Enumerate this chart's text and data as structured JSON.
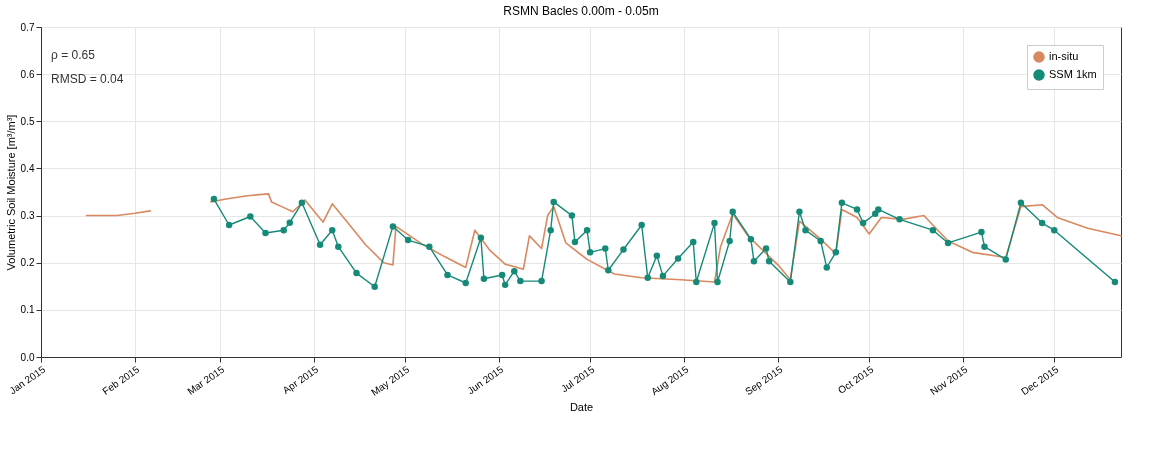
{
  "chart_data": {
    "type": "line",
    "title": "RSMN Bacles 0.00m - 0.05m",
    "xlabel": "Date",
    "ylabel": "Volumetric Soil Moisture [m³/m³]",
    "annotations": [
      "ρ = 0.65",
      "RMSD = 0.04"
    ],
    "xlim": [
      "2015-01-01",
      "2015-12-23"
    ],
    "xticks": [
      {
        "value": "2015-01-01",
        "label": "Jan 2015"
      },
      {
        "value": "2015-02-01",
        "label": "Feb 2015"
      },
      {
        "value": "2015-03-01",
        "label": "Mar 2015"
      },
      {
        "value": "2015-04-01",
        "label": "Apr 2015"
      },
      {
        "value": "2015-05-01",
        "label": "May 2015"
      },
      {
        "value": "2015-06-01",
        "label": "Jun 2015"
      },
      {
        "value": "2015-07-01",
        "label": "Jul 2015"
      },
      {
        "value": "2015-08-01",
        "label": "Aug 2015"
      },
      {
        "value": "2015-09-01",
        "label": "Sep 2015"
      },
      {
        "value": "2015-10-01",
        "label": "Oct 2015"
      },
      {
        "value": "2015-11-01",
        "label": "Nov 2015"
      },
      {
        "value": "2015-12-01",
        "label": "Dec 2015"
      }
    ],
    "ylim": [
      0,
      0.7
    ],
    "yticks": [
      {
        "value": 0,
        "label": "0.0"
      },
      {
        "value": 0.1,
        "label": "0.1"
      },
      {
        "value": 0.2,
        "label": "0.2"
      },
      {
        "value": 0.3,
        "label": "0.3"
      },
      {
        "value": 0.4,
        "label": "0.4"
      },
      {
        "value": 0.5,
        "label": "0.5"
      },
      {
        "value": 0.6,
        "label": "0.6"
      },
      {
        "value": 0.7,
        "label": "0.7"
      }
    ],
    "grid": true,
    "legend": "top right",
    "line_style": "solid",
    "series": [
      {
        "name": "in-situ",
        "color": "#d9895f",
        "marker": "none",
        "x": [
          "2015-01-16",
          "2015-01-26",
          "2015-02-01",
          "2015-02-06",
          "2015-02-16",
          "2015-02-26",
          "2015-03-03",
          "2015-03-10",
          "2015-03-17",
          "2015-03-18",
          "2015-03-21",
          "2015-03-25",
          "2015-03-29",
          "2015-04-04",
          "2015-04-07",
          "2015-04-12",
          "2015-04-18",
          "2015-04-24",
          "2015-04-27",
          "2015-04-28",
          "2015-05-07",
          "2015-05-14",
          "2015-05-21",
          "2015-05-24",
          "2015-05-29",
          "2015-06-03",
          "2015-06-09",
          "2015-06-11",
          "2015-06-15",
          "2015-06-17",
          "2015-06-19",
          "2015-06-23",
          "2015-06-30",
          "2015-07-09",
          "2015-07-18",
          "2015-07-31",
          "2015-08-11",
          "2015-08-13",
          "2015-08-17",
          "2015-08-22",
          "2015-09-01",
          "2015-09-05",
          "2015-09-08",
          "2015-09-15",
          "2015-09-20",
          "2015-09-22",
          "2015-09-27",
          "2015-10-01",
          "2015-10-05",
          "2015-10-12",
          "2015-10-19",
          "2015-10-27",
          "2015-11-04",
          "2015-11-15",
          "2015-11-20",
          "2015-11-27",
          "2015-12-02",
          "2015-12-12",
          "2015-12-23"
        ],
        "values": [
          0.3,
          0.3,
          0.305,
          0.31,
          null,
          0.329,
          0.335,
          0.342,
          0.346,
          0.329,
          0.32,
          0.308,
          0.333,
          0.286,
          0.325,
          0.286,
          0.238,
          0.2,
          0.195,
          0.277,
          0.238,
          0.213,
          0.19,
          0.269,
          0.226,
          0.197,
          0.186,
          0.257,
          0.23,
          0.3,
          0.319,
          0.242,
          0.207,
          0.176,
          0.168,
          0.164,
          0.159,
          0.234,
          0.304,
          0.257,
          0.195,
          0.164,
          0.288,
          0.25,
          0.219,
          0.313,
          0.296,
          0.261,
          0.296,
          0.292,
          0.3,
          0.246,
          0.222,
          0.211,
          0.319,
          0.323,
          0.296,
          0.273,
          0.257
        ]
      },
      {
        "name": "SSM 1km",
        "color": "#168a78",
        "marker": "circle",
        "x": [
          "2015-02-27",
          "2015-03-04",
          "2015-03-11",
          "2015-03-16",
          "2015-03-22",
          "2015-03-24",
          "2015-03-28",
          "2015-04-03",
          "2015-04-07",
          "2015-04-09",
          "2015-04-15",
          "2015-04-21",
          "2015-04-27",
          "2015-05-02",
          "2015-05-09",
          "2015-05-15",
          "2015-05-21",
          "2015-05-26",
          "2015-05-27",
          "2015-06-02",
          "2015-06-03",
          "2015-06-06",
          "2015-06-08",
          "2015-06-15",
          "2015-06-18",
          "2015-06-19",
          "2015-06-25",
          "2015-06-26",
          "2015-06-30",
          "2015-07-01",
          "2015-07-06",
          "2015-07-07",
          "2015-07-12",
          "2015-07-18",
          "2015-07-20",
          "2015-07-23",
          "2015-07-25",
          "2015-07-30",
          "2015-08-04",
          "2015-08-05",
          "2015-08-11",
          "2015-08-12",
          "2015-08-16",
          "2015-08-17",
          "2015-08-23",
          "2015-08-24",
          "2015-08-28",
          "2015-08-29",
          "2015-09-05",
          "2015-09-08",
          "2015-09-10",
          "2015-09-15",
          "2015-09-17",
          "2015-09-20",
          "2015-09-22",
          "2015-09-27",
          "2015-09-29",
          "2015-10-03",
          "2015-10-04",
          "2015-10-11",
          "2015-10-22",
          "2015-10-27",
          "2015-11-07",
          "2015-11-08",
          "2015-11-15",
          "2015-11-20",
          "2015-11-27",
          "2015-12-01",
          "2015-12-21"
        ],
        "values": [
          0.335,
          0.28,
          0.298,
          0.263,
          0.269,
          0.285,
          0.327,
          0.238,
          0.269,
          0.234,
          0.178,
          0.149,
          0.277,
          0.248,
          0.234,
          0.174,
          0.157,
          0.253,
          0.166,
          0.174,
          0.153,
          0.182,
          0.161,
          0.161,
          0.269,
          0.329,
          0.3,
          0.244,
          0.269,
          0.222,
          0.23,
          0.184,
          0.228,
          0.28,
          0.168,
          0.215,
          0.172,
          0.209,
          0.244,
          0.159,
          0.284,
          0.159,
          0.246,
          0.308,
          0.25,
          0.203,
          0.23,
          0.203,
          0.159,
          0.308,
          0.269,
          0.246,
          0.19,
          0.222,
          0.327,
          0.313,
          0.284,
          0.304,
          0.313,
          0.292,
          0.269,
          0.242,
          0.265,
          0.234,
          0.207,
          0.327,
          0.284,
          0.269,
          0.159
        ]
      }
    ]
  }
}
